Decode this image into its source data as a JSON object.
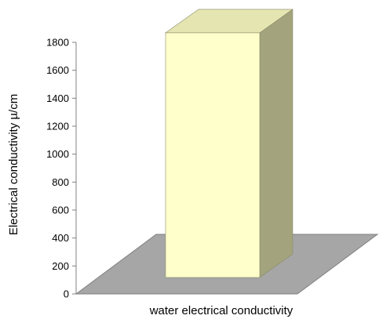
{
  "chart_data": {
    "type": "bar",
    "style": "3d",
    "categories": [
      "water electrical conductivity"
    ],
    "series": [
      {
        "values": [
          1750
        ]
      }
    ],
    "xlabel": "water electrical conductivity",
    "ylabel": "Electrical conductivity µ/cm",
    "ylim": [
      0,
      1800
    ],
    "yticks": [
      0,
      200,
      400,
      600,
      800,
      1000,
      1200,
      1400,
      1600,
      1800
    ],
    "grid": false,
    "legend": "none",
    "colors": {
      "bar_front": "#FFFFCC",
      "bar_top": "#E5E5B2",
      "bar_side": "#A3A37D",
      "bar_edge": "#8A8A6A",
      "floor": "#A6A6A6",
      "floor_edge": "#7F7F7F",
      "axis": "#808080"
    }
  }
}
